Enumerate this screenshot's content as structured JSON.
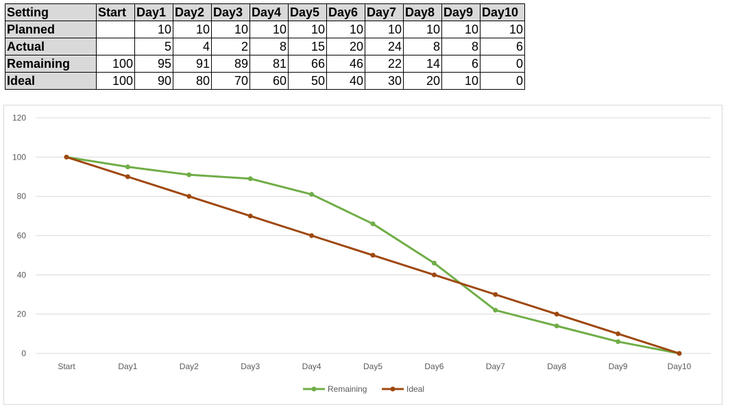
{
  "table": {
    "header": [
      "Setting",
      "Start",
      "Day1",
      "Day2",
      "Day3",
      "Day4",
      "Day5",
      "Day6",
      "Day7",
      "Day8",
      "Day9",
      "Day10"
    ],
    "rows": [
      {
        "label": "Planned",
        "cells": [
          "",
          "10",
          "10",
          "10",
          "10",
          "10",
          "10",
          "10",
          "10",
          "10",
          "10"
        ]
      },
      {
        "label": "Actual",
        "cells": [
          "",
          "5",
          "4",
          "2",
          "8",
          "15",
          "20",
          "24",
          "8",
          "8",
          "6"
        ]
      },
      {
        "label": "Remaining",
        "cells": [
          "100",
          "95",
          "91",
          "89",
          "81",
          "66",
          "46",
          "22",
          "14",
          "6",
          "0"
        ]
      },
      {
        "label": "Ideal",
        "cells": [
          "100",
          "90",
          "80",
          "70",
          "60",
          "50",
          "40",
          "30",
          "20",
          "10",
          "0"
        ]
      }
    ]
  },
  "chart_data": {
    "type": "line",
    "categories": [
      "Start",
      "Day1",
      "Day2",
      "Day3",
      "Day4",
      "Day5",
      "Day6",
      "Day7",
      "Day8",
      "Day9",
      "Day10"
    ],
    "series": [
      {
        "name": "Remaining",
        "values": [
          100,
          95,
          91,
          89,
          81,
          66,
          46,
          22,
          14,
          6,
          0
        ],
        "color": "#70ad47"
      },
      {
        "name": "Ideal",
        "values": [
          100,
          90,
          80,
          70,
          60,
          50,
          40,
          30,
          20,
          10,
          0
        ],
        "color": "#9e480e"
      }
    ],
    "yticks": [
      "0",
      "20",
      "40",
      "60",
      "80",
      "100",
      "120"
    ],
    "ylim": [
      0,
      120
    ],
    "grid": true,
    "legend": "bottom",
    "title": "",
    "xlabel": "",
    "ylabel": ""
  }
}
